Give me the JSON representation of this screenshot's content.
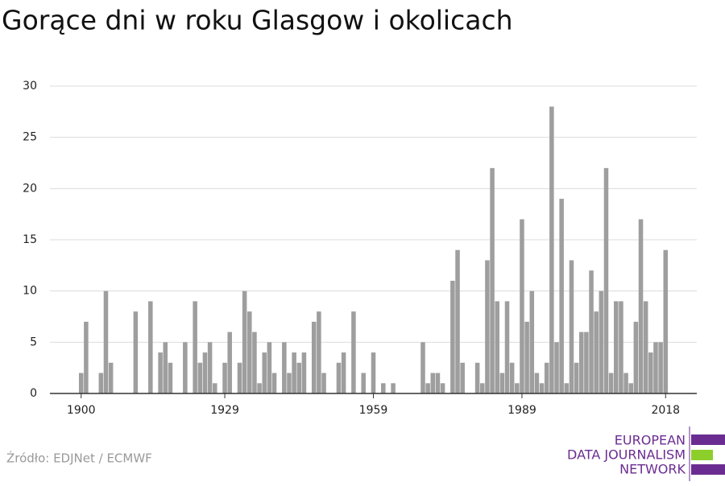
{
  "chart_data": {
    "type": "bar",
    "title": "Gorące dni w roku Glasgow i okolicach",
    "x": [
      1900,
      1901,
      1904,
      1905,
      1906,
      1911,
      1914,
      1916,
      1917,
      1918,
      1921,
      1923,
      1924,
      1925,
      1926,
      1927,
      1929,
      1930,
      1932,
      1933,
      1934,
      1935,
      1936,
      1937,
      1938,
      1939,
      1941,
      1942,
      1943,
      1944,
      1945,
      1947,
      1948,
      1949,
      1952,
      1953,
      1955,
      1957,
      1959,
      1961,
      1963,
      1969,
      1970,
      1971,
      1972,
      1973,
      1975,
      1976,
      1977,
      1980,
      1981,
      1982,
      1983,
      1984,
      1985,
      1986,
      1987,
      1988,
      1989,
      1990,
      1991,
      1992,
      1993,
      1994,
      1995,
      1996,
      1997,
      1998,
      1999,
      2000,
      2001,
      2002,
      2003,
      2004,
      2005,
      2006,
      2007,
      2008,
      2009,
      2010,
      2011,
      2012,
      2013,
      2014,
      2015,
      2016,
      2017,
      2018
    ],
    "values": [
      2,
      7,
      2,
      10,
      3,
      8,
      9,
      4,
      5,
      3,
      5,
      9,
      3,
      4,
      5,
      1,
      3,
      6,
      3,
      10,
      8,
      6,
      1,
      4,
      5,
      2,
      5,
      2,
      4,
      3,
      4,
      7,
      8,
      2,
      3,
      4,
      8,
      2,
      4,
      1,
      1,
      5,
      1,
      2,
      2,
      1,
      11,
      14,
      3,
      3,
      1,
      13,
      22,
      9,
      2,
      9,
      3,
      1,
      17,
      7,
      10,
      2,
      1,
      3,
      28,
      5,
      19,
      1,
      13,
      3,
      6,
      6,
      12,
      8,
      10,
      22,
      2,
      9,
      9,
      2,
      1,
      7,
      17,
      9,
      4,
      5,
      5,
      14
    ],
    "color": "#9e9e9e",
    "xlim": [
      1893.7,
      2024.3
    ],
    "xticks": [
      1900,
      1929,
      1959,
      1989,
      2018
    ],
    "ylim": [
      0,
      30
    ],
    "yticks": [
      0,
      5,
      10,
      15,
      20,
      25,
      30
    ],
    "grid": true,
    "source": "Źródło: EDJNet / ECMWF"
  },
  "logo": {
    "lines": [
      "EUROPEAN",
      "DATA JOURNALISM",
      "NETWORK"
    ]
  }
}
